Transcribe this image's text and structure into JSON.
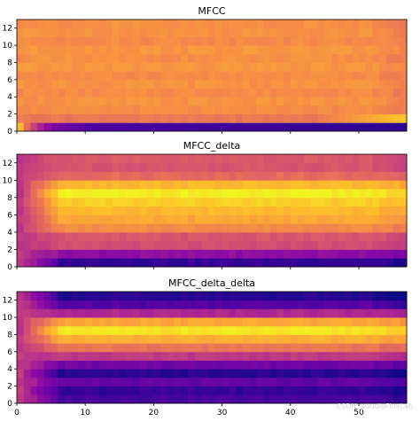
{
  "watermark": "CSDN @audioFluxLab",
  "chart_data": [
    {
      "type": "heatmap",
      "title": "MFCC",
      "x": {
        "min": 0,
        "max": 57
      },
      "y": {
        "min": 0,
        "max": 13
      },
      "xticks": [
        0,
        10,
        20,
        30,
        40,
        50
      ],
      "yticks": [
        0,
        2,
        4,
        6,
        8,
        10,
        12
      ],
      "show_xtick_labels": false,
      "colormap": "plasma",
      "value_range": [
        0,
        1
      ],
      "row_values": [
        0.1,
        0.66,
        0.72,
        0.74,
        0.72,
        0.74,
        0.72,
        0.75,
        0.73,
        0.75,
        0.72,
        0.74,
        0.73
      ],
      "row0_onset": [
        0.85,
        0.62,
        0.48,
        0.38,
        0.3,
        0.25,
        0.22,
        0.2,
        0.18,
        0.17
      ],
      "row1_end": 0.9
    },
    {
      "type": "heatmap",
      "title": "MFCC_delta",
      "x": {
        "min": 0,
        "max": 57
      },
      "y": {
        "min": 0,
        "max": 13
      },
      "xticks": [
        0,
        10,
        20,
        30,
        40,
        50
      ],
      "yticks": [
        0,
        2,
        4,
        6,
        8,
        10,
        12
      ],
      "show_xtick_labels": false,
      "colormap": "plasma",
      "value_range": [
        0,
        1
      ],
      "row_values": [
        0.08,
        0.3,
        0.52,
        0.55,
        0.72,
        0.8,
        0.85,
        0.9,
        0.97,
        0.85,
        0.62,
        0.55,
        0.56
      ]
    },
    {
      "type": "heatmap",
      "title": "MFCC_delta_delta",
      "x": {
        "min": 0,
        "max": 57
      },
      "y": {
        "min": 0,
        "max": 13
      },
      "xticks": [
        0,
        10,
        20,
        30,
        40,
        50
      ],
      "yticks": [
        0,
        2,
        4,
        6,
        8,
        10,
        12
      ],
      "show_xtick_labels": true,
      "colormap": "plasma",
      "value_range": [
        0,
        1
      ],
      "row_values": [
        0.12,
        0.08,
        0.18,
        0.05,
        0.22,
        0.45,
        0.65,
        0.82,
        0.95,
        0.8,
        0.4,
        0.15,
        0.05
      ]
    }
  ]
}
